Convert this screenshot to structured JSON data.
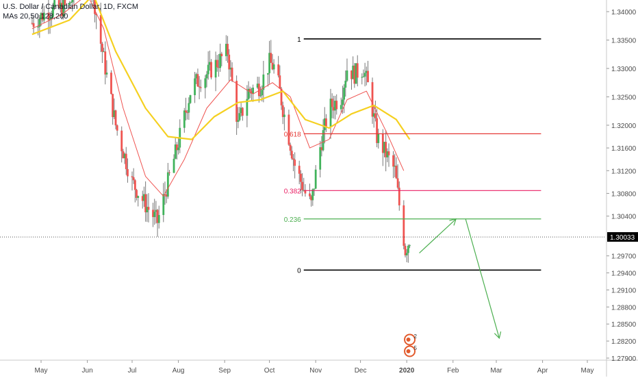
{
  "header": {
    "title": "U.S. Dollar / Canadian Dollar, 1D, FXCM",
    "indicator": "MAs 20,50,128,200"
  },
  "colors": {
    "bull": "#26a69a",
    "bullFill": "#41b35b",
    "bear": "#ef5350",
    "wick": "#777777",
    "ma_fast": "#ef5350",
    "ma_slow": "#f5d020",
    "fib_black": "#000000",
    "fib_618": "#e53935",
    "fib_382": "#e91e63",
    "fib_236": "#4caf50",
    "arrow": "#4caf50",
    "price_tag_bg": "#000000",
    "price_tag_text": "#ffffff"
  },
  "chart_data": {
    "type": "line",
    "y_axis": {
      "ticks": [
        1.34,
        1.335,
        1.33,
        1.325,
        1.32,
        1.316,
        1.312,
        1.308,
        1.304,
        1.297,
        1.294,
        1.291,
        1.288,
        1.285,
        1.282,
        1.279
      ],
      "tick_labels": [
        "1.34000",
        "1.33500",
        "1.33000",
        "1.32500",
        "1.32000",
        "1.31600",
        "1.31200",
        "1.30800",
        "1.30400",
        "1.29700",
        "1.29400",
        "1.29100",
        "1.28800",
        "1.28500",
        "1.28200",
        "1.27900"
      ]
    },
    "x_axis": {
      "labels": [
        "May",
        "Jun",
        "Jul",
        "Aug",
        "Sep",
        "Oct",
        "Nov",
        "Dec",
        "2020",
        "Feb",
        "Mar",
        "Apr",
        "May"
      ],
      "bold": [
        "2020"
      ]
    },
    "current_price": {
      "value": 1.30033,
      "label": "1.30033"
    },
    "fib_levels": [
      {
        "label": "1",
        "value": 1.3352,
        "start": "Oct-w3",
        "end": "Mar-end",
        "color": "fib_black"
      },
      {
        "label": "0.618",
        "value": 1.3185,
        "start": "Oct-w3",
        "end": "Mar-end",
        "color": "fib_618"
      },
      {
        "label": "0.382",
        "value": 1.3085,
        "start": "Oct-w3",
        "end": "Mar-end",
        "color": "fib_382"
      },
      {
        "label": "0.236",
        "value": 1.3035,
        "start": "Oct-w3",
        "end": "Mar-end",
        "color": "fib_236"
      },
      {
        "label": "0",
        "value": 1.2945,
        "start": "Oct-w3",
        "end": "Mar-end",
        "color": "fib_black"
      }
    ],
    "fib_label_texts": [
      "1",
      "0.618",
      "0.382",
      "0.236",
      "0"
    ],
    "projection_arrows": [
      {
        "from": [
          "2020-01-03",
          1.2975
        ],
        "to": [
          "2020-02-03",
          1.3035
        ]
      },
      {
        "from": [
          "2020-02-03",
          1.3035
        ],
        "to": [
          "2020-03-03",
          1.2825
        ]
      }
    ],
    "events": [
      {
        "date": "2020-01-03",
        "badge": "2"
      },
      {
        "date": "2020-01-03",
        "badge": "5"
      }
    ],
    "candles_path_keypoints": [
      [
        "2019-04-25",
        1.338
      ],
      [
        "2019-05-05",
        1.34
      ],
      [
        "2019-05-20",
        1.341
      ],
      [
        "2019-05-31",
        1.35
      ],
      [
        "2019-06-05",
        1.343
      ],
      [
        "2019-06-10",
        1.3345
      ],
      [
        "2019-06-20",
        1.32
      ],
      [
        "2019-07-01",
        1.31
      ],
      [
        "2019-07-10",
        1.306
      ],
      [
        "2019-07-18",
        1.303
      ],
      [
        "2019-07-25",
        1.31
      ],
      [
        "2019-08-01",
        1.317
      ],
      [
        "2019-08-10",
        1.327
      ],
      [
        "2019-08-20",
        1.329
      ],
      [
        "2019-08-27",
        1.331
      ],
      [
        "2019-09-03",
        1.333
      ],
      [
        "2019-09-10",
        1.32
      ],
      [
        "2019-09-17",
        1.326
      ],
      [
        "2019-09-25",
        1.327
      ],
      [
        "2019-10-01",
        1.331
      ],
      [
        "2019-10-05",
        1.33
      ],
      [
        "2019-10-10",
        1.323
      ],
      [
        "2019-10-18",
        1.313
      ],
      [
        "2019-10-25",
        1.308
      ],
      [
        "2019-10-29",
        1.306
      ],
      [
        "2019-11-03",
        1.315
      ],
      [
        "2019-11-10",
        1.323
      ],
      [
        "2019-11-18",
        1.325
      ],
      [
        "2019-11-22",
        1.33
      ],
      [
        "2019-11-27",
        1.329
      ],
      [
        "2019-12-03",
        1.33
      ],
      [
        "2019-12-07",
        1.326
      ],
      [
        "2019-12-12",
        1.318
      ],
      [
        "2019-12-18",
        1.315
      ],
      [
        "2019-12-24",
        1.312
      ],
      [
        "2019-12-27",
        1.306
      ],
      [
        "2019-12-31",
        1.298
      ],
      [
        "2020-01-03",
        1.3
      ]
    ],
    "ma_fast_points": [
      [
        "2019-04-25",
        1.337
      ],
      [
        "2019-05-15",
        1.3395
      ],
      [
        "2019-06-01",
        1.343
      ],
      [
        "2019-06-12",
        1.337
      ],
      [
        "2019-06-25",
        1.323
      ],
      [
        "2019-07-10",
        1.311
      ],
      [
        "2019-07-22",
        1.3075
      ],
      [
        "2019-08-05",
        1.314
      ],
      [
        "2019-08-20",
        1.323
      ],
      [
        "2019-09-05",
        1.328
      ],
      [
        "2019-09-20",
        1.3255
      ],
      [
        "2019-10-03",
        1.3275
      ],
      [
        "2019-10-15",
        1.325
      ],
      [
        "2019-10-28",
        1.316
      ],
      [
        "2019-11-10",
        1.3175
      ],
      [
        "2019-11-22",
        1.3245
      ],
      [
        "2019-12-05",
        1.326
      ],
      [
        "2019-12-18",
        1.319
      ],
      [
        "2019-12-30",
        1.312
      ]
    ],
    "ma_slow_points": [
      [
        "2019-04-25",
        1.336
      ],
      [
        "2019-05-20",
        1.3385
      ],
      [
        "2019-06-05",
        1.343
      ],
      [
        "2019-06-20",
        1.333
      ],
      [
        "2019-07-10",
        1.323
      ],
      [
        "2019-07-25",
        1.318
      ],
      [
        "2019-08-10",
        1.3175
      ],
      [
        "2019-08-25",
        1.3215
      ],
      [
        "2019-09-10",
        1.324
      ],
      [
        "2019-09-25",
        1.3245
      ],
      [
        "2019-10-10",
        1.326
      ],
      [
        "2019-10-25",
        1.321
      ],
      [
        "2019-11-10",
        1.3195
      ],
      [
        "2019-11-25",
        1.322
      ],
      [
        "2019-12-10",
        1.3235
      ],
      [
        "2019-12-25",
        1.321
      ],
      [
        "2020-01-03",
        1.3175
      ]
    ]
  }
}
